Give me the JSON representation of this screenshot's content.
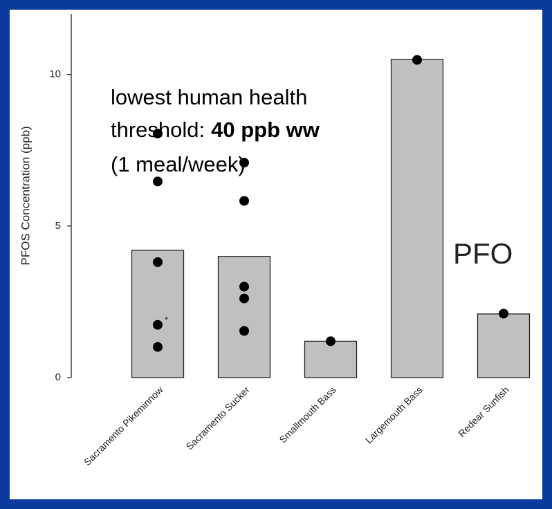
{
  "chart_data": {
    "type": "bar",
    "y_label": "PFOS Concentration (ppb)",
    "categories": [
      "Sacramento Pikeminnow",
      "Sacramento Sucker",
      "Smallmouth Bass",
      "Largemouth Bass",
      "Redear Sunfish"
    ],
    "values": [
      4.2,
      4.0,
      1.2,
      10.5,
      2.1
    ],
    "color": "#c0c0c0",
    "points": [
      [
        8.05,
        6.47,
        3.81,
        1.74,
        1.01
      ],
      [
        7.09,
        5.83,
        3.0,
        2.61,
        1.54
      ],
      [
        1.2
      ],
      [
        10.48
      ],
      [
        2.11
      ]
    ],
    "point_color": "#000000",
    "point_note": "*",
    "ylim": [
      0,
      12
    ],
    "yticks": [
      0,
      5,
      10
    ],
    "annotation": {
      "line1": "lowest human health",
      "line2": "threshold:",
      "line2_bold": "40 ppb ww",
      "line3": "(1 meal/week)"
    },
    "overlay_text": "PFO"
  }
}
